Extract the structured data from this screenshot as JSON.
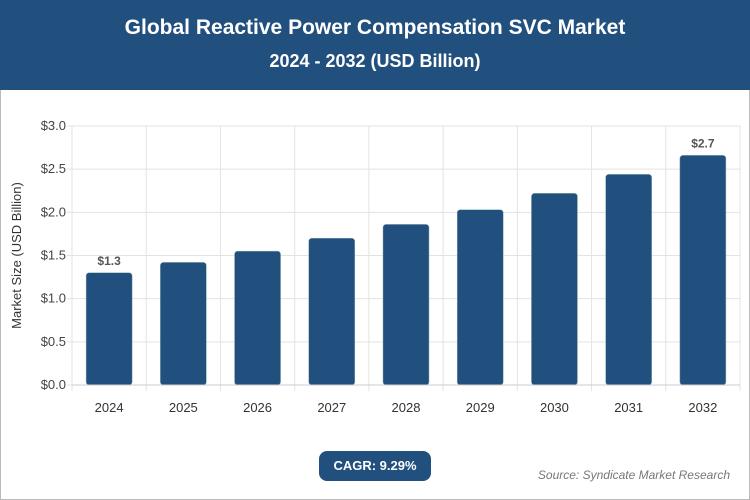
{
  "header": {
    "title": "Global Reactive Power Compensation SVC Market",
    "subtitle": "2024 - 2032 (USD Billion)"
  },
  "chart_data": {
    "type": "bar",
    "title": "Global Reactive Power Compensation SVC Market",
    "subtitle": "2024 - 2032 (USD Billion)",
    "ylabel": "Market Size (USD Billion)",
    "xlabel": "",
    "categories": [
      "2024",
      "2025",
      "2026",
      "2027",
      "2028",
      "2029",
      "2030",
      "2031",
      "2032"
    ],
    "values": [
      1.3,
      1.42,
      1.55,
      1.7,
      1.86,
      2.03,
      2.22,
      2.44,
      2.66
    ],
    "data_labels": {
      "0": "$1.3",
      "8": "$2.7"
    },
    "ylim": [
      0,
      3.0
    ],
    "yticks": [
      "$0.0",
      "$0.5",
      "$1.0",
      "$1.5",
      "$2.0",
      "$2.5",
      "$3.0"
    ],
    "grid": true,
    "bar_color": "#22507e"
  },
  "footer": {
    "cagr": "CAGR: 9.29%",
    "source": "Source: Syndicate Market Research"
  }
}
